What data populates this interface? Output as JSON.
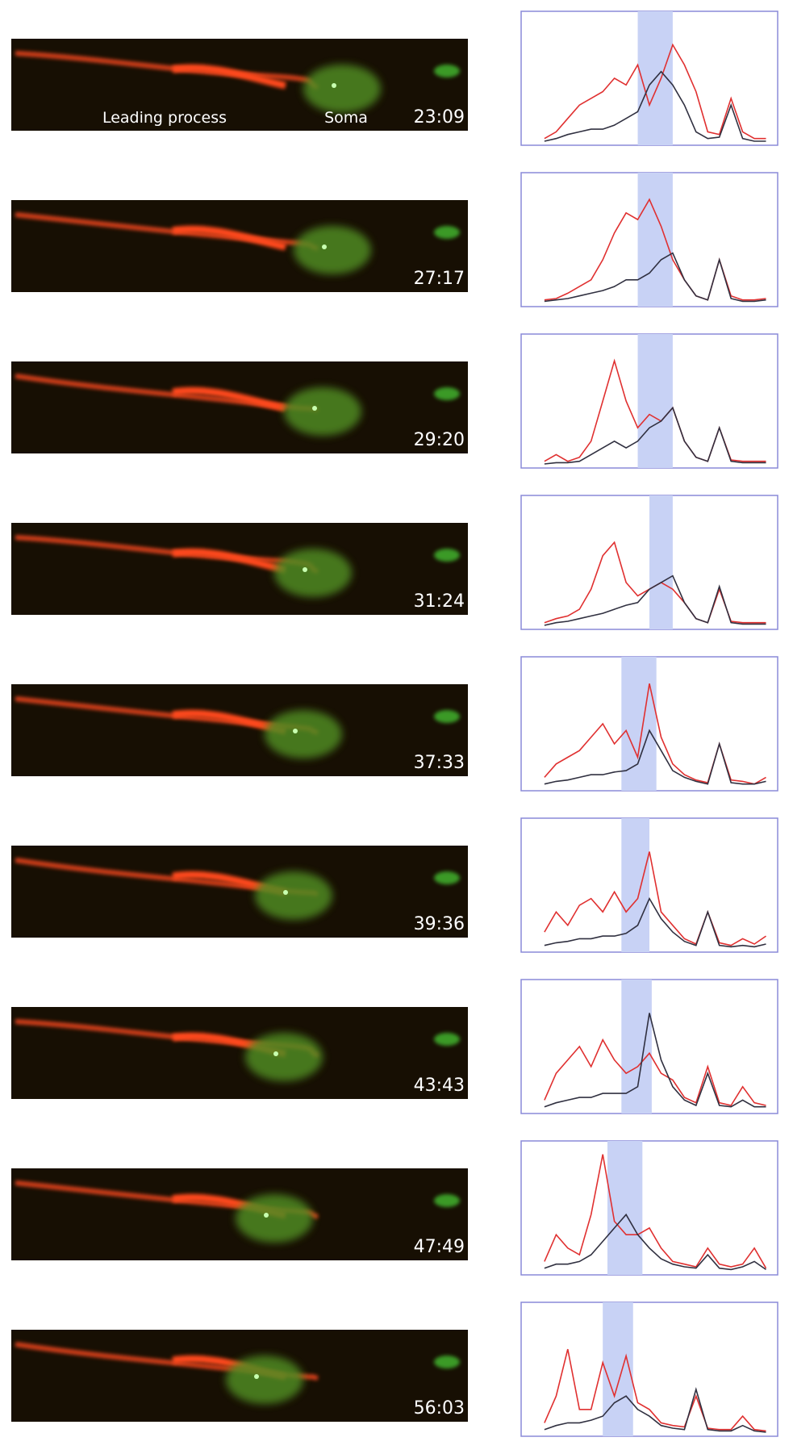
{
  "panels": [
    {
      "time": "23:09",
      "labels": [
        "Leading process",
        "Soma"
      ]
    },
    {
      "time": "27:17"
    },
    {
      "time": "29:20"
    },
    {
      "time": "31:24"
    },
    {
      "time": "37:33"
    },
    {
      "time": "39:36"
    },
    {
      "time": "43:43"
    },
    {
      "time": "47:49"
    },
    {
      "time": "56:03"
    }
  ],
  "chart_data": [
    {
      "type": "line",
      "xlim": [
        -10,
        100
      ],
      "ylim": [
        0,
        1
      ],
      "highlight": [
        40,
        55
      ],
      "highlight_color": "#c8d2f5",
      "x": [
        0,
        5,
        10,
        15,
        20,
        25,
        30,
        35,
        40,
        45,
        50,
        55,
        60,
        65,
        70,
        75,
        80,
        85,
        90,
        95
      ],
      "series": [
        {
          "color": "#e03030",
          "values": [
            0.05,
            0.1,
            0.2,
            0.3,
            0.35,
            0.4,
            0.5,
            0.45,
            0.6,
            0.3,
            0.5,
            0.75,
            0.6,
            0.4,
            0.1,
            0.08,
            0.35,
            0.1,
            0.05,
            0.05
          ]
        },
        {
          "color": "#303040",
          "values": [
            0.03,
            0.05,
            0.08,
            0.1,
            0.12,
            0.12,
            0.15,
            0.2,
            0.25,
            0.45,
            0.55,
            0.45,
            0.3,
            0.1,
            0.05,
            0.06,
            0.3,
            0.05,
            0.03,
            0.03
          ]
        }
      ]
    },
    {
      "type": "line",
      "xlim": [
        -10,
        100
      ],
      "ylim": [
        0,
        1
      ],
      "highlight": [
        40,
        55
      ],
      "highlight_color": "#c8d2f5",
      "x": [
        0,
        5,
        10,
        15,
        20,
        25,
        30,
        35,
        40,
        45,
        50,
        55,
        60,
        65,
        70,
        75,
        80,
        85,
        90,
        95
      ],
      "series": [
        {
          "color": "#e03030",
          "values": [
            0.05,
            0.06,
            0.1,
            0.15,
            0.2,
            0.35,
            0.55,
            0.7,
            0.65,
            0.8,
            0.6,
            0.35,
            0.2,
            0.08,
            0.05,
            0.35,
            0.08,
            0.05,
            0.05,
            0.06
          ]
        },
        {
          "color": "#303040",
          "values": [
            0.04,
            0.05,
            0.06,
            0.08,
            0.1,
            0.12,
            0.15,
            0.2,
            0.2,
            0.25,
            0.35,
            0.4,
            0.2,
            0.08,
            0.05,
            0.35,
            0.06,
            0.04,
            0.04,
            0.05
          ]
        }
      ]
    },
    {
      "type": "line",
      "xlim": [
        -10,
        100
      ],
      "ylim": [
        0,
        1
      ],
      "highlight": [
        40,
        55
      ],
      "highlight_color": "#c8d2f5",
      "x": [
        0,
        5,
        10,
        15,
        20,
        25,
        30,
        35,
        40,
        45,
        50,
        55,
        60,
        65,
        70,
        75,
        80,
        85,
        90,
        95
      ],
      "series": [
        {
          "color": "#e03030",
          "values": [
            0.05,
            0.1,
            0.05,
            0.08,
            0.2,
            0.5,
            0.8,
            0.5,
            0.3,
            0.4,
            0.35,
            0.45,
            0.2,
            0.08,
            0.05,
            0.3,
            0.06,
            0.05,
            0.05,
            0.05
          ]
        },
        {
          "color": "#303040",
          "values": [
            0.03,
            0.04,
            0.04,
            0.05,
            0.1,
            0.15,
            0.2,
            0.15,
            0.2,
            0.3,
            0.35,
            0.45,
            0.2,
            0.08,
            0.05,
            0.3,
            0.05,
            0.04,
            0.04,
            0.04
          ]
        }
      ]
    },
    {
      "type": "line",
      "xlim": [
        -10,
        100
      ],
      "ylim": [
        0,
        1
      ],
      "highlight": [
        45,
        55
      ],
      "highlight_color": "#c8d2f5",
      "x": [
        0,
        5,
        10,
        15,
        20,
        25,
        30,
        35,
        40,
        45,
        50,
        55,
        60,
        65,
        70,
        75,
        80,
        85,
        90,
        95
      ],
      "series": [
        {
          "color": "#e03030",
          "values": [
            0.05,
            0.08,
            0.1,
            0.15,
            0.3,
            0.55,
            0.65,
            0.35,
            0.25,
            0.3,
            0.35,
            0.3,
            0.2,
            0.08,
            0.05,
            0.3,
            0.06,
            0.05,
            0.05,
            0.05
          ]
        },
        {
          "color": "#303040",
          "values": [
            0.03,
            0.05,
            0.06,
            0.08,
            0.1,
            0.12,
            0.15,
            0.18,
            0.2,
            0.3,
            0.35,
            0.4,
            0.2,
            0.08,
            0.05,
            0.32,
            0.05,
            0.04,
            0.04,
            0.04
          ]
        }
      ]
    },
    {
      "type": "line",
      "xlim": [
        -10,
        100
      ],
      "ylim": [
        0,
        1
      ],
      "highlight": [
        33,
        48
      ],
      "highlight_color": "#c8d2f5",
      "x": [
        0,
        5,
        10,
        15,
        20,
        25,
        30,
        35,
        40,
        45,
        50,
        55,
        60,
        65,
        70,
        75,
        80,
        85,
        90,
        95
      ],
      "series": [
        {
          "color": "#e03030",
          "values": [
            0.1,
            0.2,
            0.25,
            0.3,
            0.4,
            0.5,
            0.35,
            0.45,
            0.25,
            0.8,
            0.4,
            0.2,
            0.12,
            0.08,
            0.06,
            0.35,
            0.08,
            0.07,
            0.05,
            0.1
          ]
        },
        {
          "color": "#303040",
          "values": [
            0.05,
            0.07,
            0.08,
            0.1,
            0.12,
            0.12,
            0.14,
            0.15,
            0.2,
            0.45,
            0.3,
            0.15,
            0.1,
            0.07,
            0.05,
            0.35,
            0.06,
            0.05,
            0.05,
            0.07
          ]
        }
      ]
    },
    {
      "type": "line",
      "xlim": [
        -10,
        100
      ],
      "ylim": [
        0,
        1
      ],
      "highlight": [
        33,
        45
      ],
      "highlight_color": "#c8d2f5",
      "x": [
        0,
        5,
        10,
        15,
        20,
        25,
        30,
        35,
        40,
        45,
        50,
        55,
        60,
        65,
        70,
        75,
        80,
        85,
        90,
        95
      ],
      "series": [
        {
          "color": "#e03030",
          "values": [
            0.15,
            0.3,
            0.2,
            0.35,
            0.4,
            0.3,
            0.45,
            0.3,
            0.4,
            0.75,
            0.3,
            0.2,
            0.1,
            0.06,
            0.3,
            0.07,
            0.05,
            0.1,
            0.06,
            0.12
          ]
        },
        {
          "color": "#303040",
          "values": [
            0.05,
            0.07,
            0.08,
            0.1,
            0.1,
            0.12,
            0.12,
            0.14,
            0.2,
            0.4,
            0.25,
            0.15,
            0.08,
            0.05,
            0.3,
            0.05,
            0.04,
            0.05,
            0.04,
            0.06
          ]
        }
      ]
    },
    {
      "type": "line",
      "xlim": [
        -10,
        100
      ],
      "ylim": [
        0,
        1
      ],
      "highlight": [
        33,
        46
      ],
      "highlight_color": "#c8d2f5",
      "x": [
        0,
        5,
        10,
        15,
        20,
        25,
        30,
        35,
        40,
        45,
        50,
        55,
        60,
        65,
        70,
        75,
        80,
        85,
        90,
        95
      ],
      "series": [
        {
          "color": "#e03030",
          "values": [
            0.1,
            0.3,
            0.4,
            0.5,
            0.35,
            0.55,
            0.4,
            0.3,
            0.35,
            0.45,
            0.3,
            0.25,
            0.12,
            0.08,
            0.35,
            0.08,
            0.06,
            0.2,
            0.08,
            0.06
          ]
        },
        {
          "color": "#303040",
          "values": [
            0.05,
            0.08,
            0.1,
            0.12,
            0.12,
            0.15,
            0.15,
            0.15,
            0.2,
            0.75,
            0.4,
            0.2,
            0.1,
            0.06,
            0.3,
            0.06,
            0.05,
            0.1,
            0.05,
            0.05
          ]
        }
      ]
    },
    {
      "type": "line",
      "xlim": [
        -10,
        100
      ],
      "ylim": [
        0,
        1
      ],
      "highlight": [
        27,
        42
      ],
      "highlight_color": "#c8d2f5",
      "x": [
        0,
        5,
        10,
        15,
        20,
        25,
        30,
        35,
        40,
        45,
        50,
        55,
        60,
        65,
        70,
        75,
        80,
        85,
        90,
        95
      ],
      "series": [
        {
          "color": "#e03030",
          "values": [
            0.1,
            0.3,
            0.2,
            0.15,
            0.45,
            0.9,
            0.4,
            0.3,
            0.3,
            0.35,
            0.2,
            0.1,
            0.08,
            0.06,
            0.2,
            0.08,
            0.06,
            0.08,
            0.2,
            0.05
          ]
        },
        {
          "color": "#303040",
          "values": [
            0.05,
            0.08,
            0.08,
            0.1,
            0.15,
            0.25,
            0.35,
            0.45,
            0.3,
            0.2,
            0.12,
            0.08,
            0.06,
            0.05,
            0.15,
            0.05,
            0.04,
            0.06,
            0.1,
            0.04
          ]
        }
      ]
    },
    {
      "type": "line",
      "xlim": [
        -10,
        100
      ],
      "ylim": [
        0,
        1
      ],
      "highlight": [
        25,
        38
      ],
      "highlight_color": "#c8d2f5",
      "x": [
        0,
        5,
        10,
        15,
        20,
        25,
        30,
        35,
        40,
        45,
        50,
        55,
        60,
        65,
        70,
        75,
        80,
        85,
        90,
        95
      ],
      "series": [
        {
          "color": "#e03030",
          "values": [
            0.1,
            0.3,
            0.65,
            0.2,
            0.2,
            0.55,
            0.3,
            0.6,
            0.25,
            0.2,
            0.1,
            0.08,
            0.07,
            0.3,
            0.06,
            0.05,
            0.05,
            0.15,
            0.05,
            0.04
          ]
        },
        {
          "color": "#303040",
          "values": [
            0.05,
            0.08,
            0.1,
            0.1,
            0.12,
            0.15,
            0.25,
            0.3,
            0.2,
            0.15,
            0.08,
            0.06,
            0.05,
            0.35,
            0.05,
            0.04,
            0.04,
            0.08,
            0.04,
            0.03
          ]
        }
      ]
    }
  ]
}
